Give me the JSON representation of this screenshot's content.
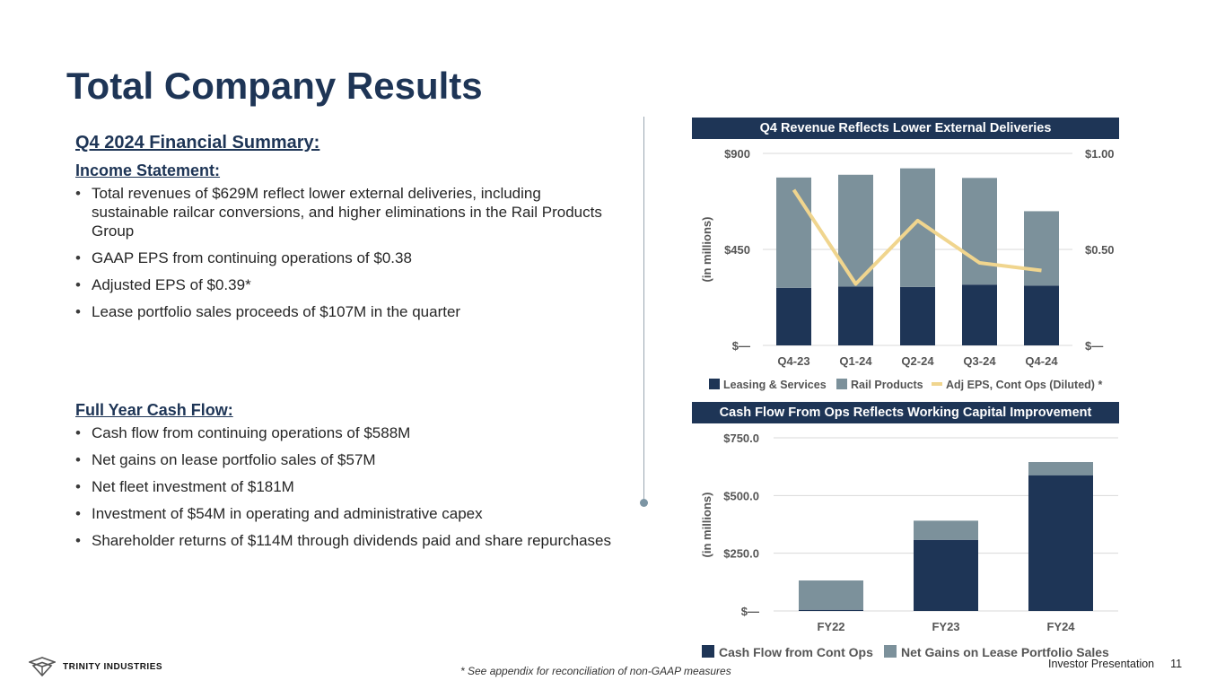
{
  "slide": {
    "title": "Total Company Results",
    "summary_heading": "Q4 2024 Financial Summary:",
    "income_heading": "Income Statement:",
    "income_bullets": [
      "Total revenues of $629M reflect lower external deliveries, including sustainable railcar conversions, and higher eliminations in the Rail Products Group",
      "GAAP EPS from continuing operations of $0.38",
      "Adjusted EPS of $0.39*",
      "Lease portfolio sales proceeds of $107M in the quarter"
    ],
    "cashflow_heading": "Full Year Cash Flow:",
    "cashflow_bullets": [
      "Cash flow from continuing operations of $588M",
      "Net gains on lease portfolio sales of $57M",
      "Net fleet investment of $181M",
      "Investment of $54M in operating and administrative capex",
      "Shareholder returns of $114M through dividends paid and share repurchases"
    ]
  },
  "footer": {
    "brand": "TRINITY INDUSTRIES",
    "footnote": "* See appendix for reconciliation of non-GAAP measures",
    "label": "Investor Presentation",
    "page": "11"
  },
  "colors": {
    "navy": "#1e3556",
    "gray": "#7c919b",
    "gold": "#f0d58e",
    "grid": "#d9d9d9"
  },
  "chart_data": [
    {
      "type": "bar",
      "title": "Q4 Revenue Reflects Lower External Deliveries",
      "stacked": true,
      "categories": [
        "Q4-23",
        "Q1-24",
        "Q2-24",
        "Q3-24",
        "Q4-24"
      ],
      "series": [
        {
          "name": "Leasing & Services",
          "axis": "left",
          "values": [
            270,
            276,
            274,
            285,
            280
          ]
        },
        {
          "name": "Rail Products",
          "axis": "left",
          "values": [
            517,
            524,
            556,
            500,
            349
          ]
        },
        {
          "name": "Adj EPS, Cont Ops (Diluted) *",
          "type": "line",
          "axis": "right",
          "values": [
            0.81,
            0.32,
            0.65,
            0.43,
            0.39
          ]
        }
      ],
      "ylabel": "(in millions)",
      "ylim": [
        0,
        900
      ],
      "yticks": [
        "$—",
        "$450",
        "$900"
      ],
      "y2lim": [
        0,
        1.0
      ],
      "y2ticks": [
        "$—",
        "$0.50",
        "$1.00"
      ],
      "legend": "bottom"
    },
    {
      "type": "bar",
      "title": "Cash Flow From Ops Reflects Working Capital Improvement",
      "stacked": true,
      "categories": [
        "FY22",
        "FY23",
        "FY24"
      ],
      "series": [
        {
          "name": "Cash Flow from Cont Ops",
          "values": [
            5,
            308,
            588
          ]
        },
        {
          "name": "Net Gains on Lease Portfolio Sales",
          "values": [
            127,
            83,
            57
          ]
        }
      ],
      "ylabel": "(in millions)",
      "ylim": [
        0,
        750
      ],
      "yticks": [
        "$—",
        "$250.0",
        "$500.0",
        "$750.0"
      ],
      "legend": "bottom"
    }
  ]
}
